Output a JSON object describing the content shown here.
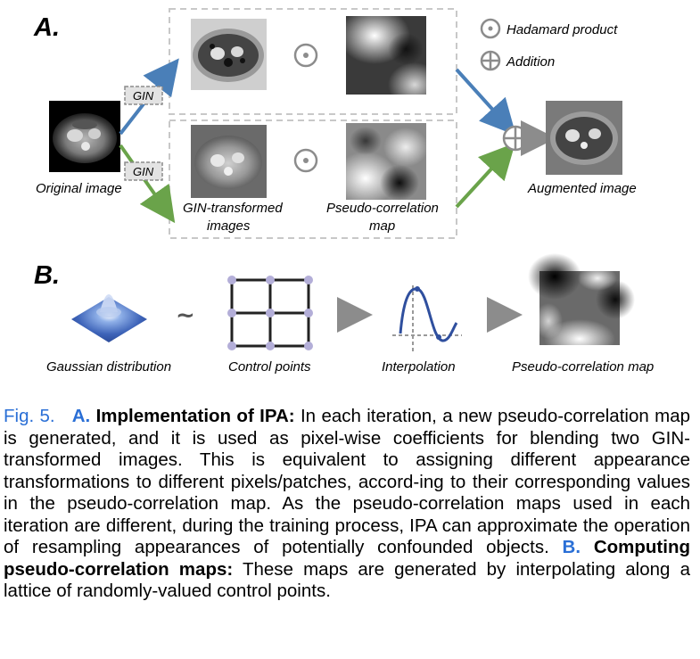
{
  "figure": {
    "panel_a": "A.",
    "panel_b": "B.",
    "legend": {
      "hadamard": "Hadamard product",
      "addition": "Addition"
    },
    "gin_label": "GIN",
    "labels": {
      "original_image": "Original image",
      "gin_transformed_line1": "GIN-transformed",
      "gin_transformed_line2": "images",
      "pseudo_map_line1": "Pseudo-correlation",
      "pseudo_map_line2": "map",
      "augmented_image": "Augmented image",
      "gaussian": "Gaussian distribution",
      "control_points": "Control points",
      "interpolation": "Interpolation",
      "pseudo_map_b": "Pseudo-correlation map"
    },
    "tilde": "~",
    "colors": {
      "blue_arrow": "#4a7fb8",
      "green_arrow": "#6aa34a",
      "gray_op": "#8c8c8c",
      "caption_blue": "#2a6fd6"
    }
  },
  "caption": {
    "fig_number": "Fig. 5.",
    "a_label": "A.",
    "a_title": "Implementation of IPA:",
    "a_text": " In each iteration, a new pseudo-correlation map is generated, and it is used as pixel-wise coefficients for blending two GIN-transformed images. This is equivalent to assigning different appearance transformations to different pixels/patches, accord-ing to their corresponding values in the pseudo-correlation map. As the pseudo-correlation maps used in each iteration are different, during the training process, IPA can approximate the operation of resampling appearances of potentially confounded objects. ",
    "b_label": "B.",
    "b_title": "Computing pseudo-correlation maps:",
    "b_text": " These maps are generated by interpolating along a lattice of randomly-valued control points."
  }
}
